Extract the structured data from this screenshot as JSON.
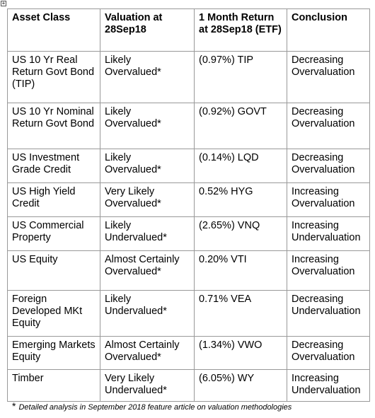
{
  "table": {
    "header": [
      "Asset Class",
      "Valuation at 28Sep18",
      "1 Month Return at 28Sep18 (ETF)",
      "Conclusion"
    ],
    "rows": [
      [
        "US 10 Yr Real Return Govt Bond (TIP)",
        "Likely Overvalued*",
        "(0.97%) TIP",
        "Decreasing Overvaluation"
      ],
      [
        "US 10 Yr Nominal Return Govt Bond",
        "Likely Overvalued*",
        "(0.92%) GOVT",
        "Decreasing Overvaluation"
      ],
      [
        "US Investment Grade Credit",
        "Likely Overvalued*",
        "(0.14%) LQD",
        "Decreasing Overvaluation"
      ],
      [
        "US High Yield Credit",
        "Very Likely Overvalued*",
        "0.52% HYG",
        "Increasing Overvaluation"
      ],
      [
        "US Commercial Property",
        "Likely Undervalued*",
        "(2.65%) VNQ",
        "Increasing Undervaluation"
      ],
      [
        "US Equity",
        "Almost Certainly Overvalued*",
        "0.20% VTI",
        "Increasing Overvaluation"
      ],
      [
        "Foreign Developed MKt Equity",
        "Likely Undervalued*",
        "0.71% VEA",
        "Decreasing Undervaluation"
      ],
      [
        "Emerging Markets Equity",
        "Almost Certainly Overvalued*",
        "(1.34%) VWO",
        "Decreasing Overvaluation"
      ],
      [
        "Timber",
        "Very Likely Undervalued*",
        "(6.05%) WY",
        "Increasing Undervaluation"
      ]
    ]
  },
  "footnote": {
    "marker": "*",
    "text": "Detailed analysis in September 2018 feature article on valuation methodologies"
  }
}
